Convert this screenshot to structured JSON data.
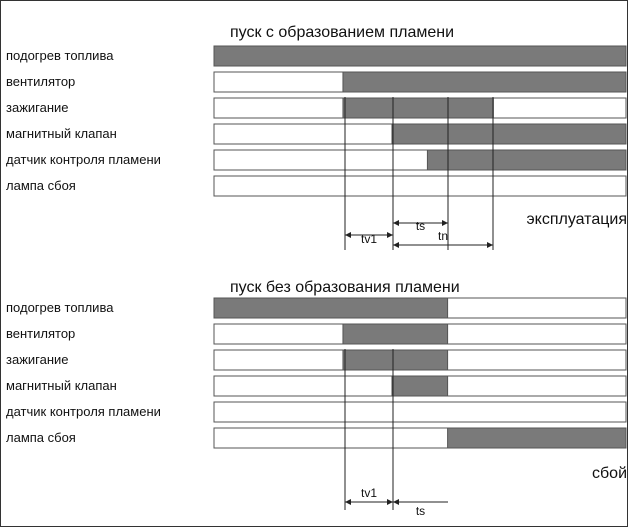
{
  "colors": {
    "active": "#7a7a7a",
    "inactive": "#ffffff",
    "border": "#555555"
  },
  "timeline": {
    "unit_note": "start/end expressed in schematic timeline units 0-100",
    "markers": {
      "tv1_end": 0,
      "ts_end": 0,
      "tn_end": 0
    }
  },
  "sections": [
    {
      "title": "пуск с образованием пламени",
      "status": "эксплуатация",
      "rows": [
        {
          "label": "подогрев топлива",
          "active": [
            [
              0,
              100
            ]
          ]
        },
        {
          "label": "вентилятор",
          "active": [
            [
              31.3,
              100
            ]
          ]
        },
        {
          "label": "зажигание",
          "active": [
            [
              31.3,
              67.8
            ]
          ]
        },
        {
          "label": "магнитный клапан",
          "active": [
            [
              43.2,
              100
            ]
          ]
        },
        {
          "label": "датчик контроля пламени",
          "active": [
            [
              51.8,
              100
            ]
          ]
        },
        {
          "label": "лампа сбоя",
          "active": []
        }
      ],
      "intervals": [
        {
          "label": "tv1"
        },
        {
          "label": "ts"
        },
        {
          "label": "tn"
        }
      ]
    },
    {
      "title": "пуск без образования пламени",
      "status": "сбой",
      "rows": [
        {
          "label": "подогрев топлива",
          "active": [
            [
              0,
              56.7
            ]
          ]
        },
        {
          "label": "вентилятор",
          "active": [
            [
              31.3,
              56.7
            ]
          ]
        },
        {
          "label": "зажигание",
          "active": [
            [
              31.3,
              56.7
            ]
          ]
        },
        {
          "label": "магнитный клапан",
          "active": [
            [
              43.2,
              56.7
            ]
          ]
        },
        {
          "label": "датчик контроля пламени",
          "active": []
        },
        {
          "label": "лампа сбоя",
          "active": [
            [
              56.7,
              100
            ]
          ]
        }
      ],
      "intervals": [
        {
          "label": "tv1"
        },
        {
          "label": "ts"
        }
      ]
    }
  ]
}
